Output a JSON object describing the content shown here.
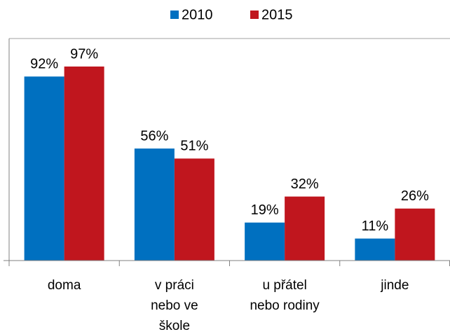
{
  "chart_data": {
    "type": "bar",
    "categories": [
      [
        "doma"
      ],
      [
        "v práci",
        "nebo ve",
        "škole"
      ],
      [
        "u přátel",
        "nebo rodiny"
      ],
      [
        "jinde"
      ]
    ],
    "series": [
      {
        "name": "2010",
        "color": "#0070c0",
        "values": [
          92,
          56,
          19,
          11
        ],
        "value_labels": [
          "92%",
          "56%",
          "19%",
          "11%"
        ]
      },
      {
        "name": "2015",
        "color": "#c0161e",
        "values": [
          97,
          51,
          32,
          26
        ],
        "value_labels": [
          "97%",
          "51%",
          "32%",
          "26%"
        ]
      }
    ],
    "ylim": [
      0,
      111
    ],
    "legend": "top"
  }
}
